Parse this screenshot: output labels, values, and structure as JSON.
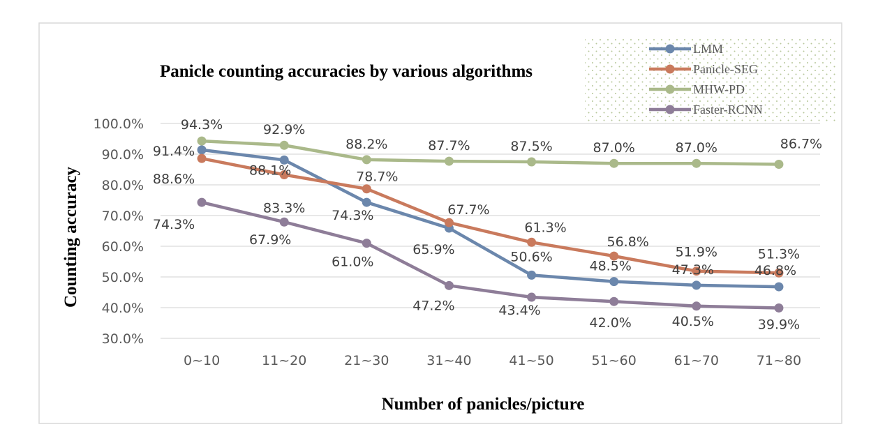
{
  "chart_data": {
    "type": "line",
    "title": "Panicle counting accuracies by various algorithms",
    "xlabel": "Number of panicles/picture",
    "ylabel": "Counting accuracy",
    "categories": [
      "0~10",
      "11~20",
      "21~30",
      "31~40",
      "41~50",
      "51~60",
      "61~70",
      "71~80"
    ],
    "ylim": [
      30,
      100
    ],
    "yticks": [
      "30.0%",
      "40.0%",
      "50.0%",
      "60.0%",
      "70.0%",
      "80.0%",
      "90.0%",
      "100.0%"
    ],
    "grid": true,
    "legend_position": "top-right",
    "series": [
      {
        "name": "LMM",
        "color": "#6b87ac",
        "values": [
          91.4,
          88.1,
          74.3,
          65.9,
          50.6,
          48.5,
          47.3,
          46.8
        ],
        "labels": [
          "91.4%",
          "88.1%",
          "74.3%",
          "65.9%",
          "50.6%",
          "48.5%",
          "47.3%",
          "46.8%"
        ]
      },
      {
        "name": "Panicle-SEG",
        "color": "#c97a5d",
        "values": [
          88.6,
          83.3,
          78.7,
          67.7,
          61.3,
          56.8,
          51.9,
          51.3
        ],
        "labels": [
          "88.6%",
          "83.3%",
          "78.7%",
          "67.7%",
          "61.3%",
          "56.8%",
          "51.9%",
          "51.3%"
        ]
      },
      {
        "name": "MHW-PD",
        "color": "#aab98a",
        "values": [
          94.3,
          92.9,
          88.2,
          87.7,
          87.5,
          87.0,
          87.0,
          86.7
        ],
        "labels": [
          "94.3%",
          "92.9%",
          "88.2%",
          "87.7%",
          "87.5%",
          "87.0%",
          "87.0%",
          "86.7%"
        ]
      },
      {
        "name": "Faster-RCNN",
        "color": "#8e7d98",
        "values": [
          74.3,
          67.9,
          61.0,
          47.2,
          43.4,
          42.0,
          40.5,
          39.9
        ],
        "labels": [
          "74.3%",
          "67.9%",
          "61.0%",
          "47.2%",
          "43.4%",
          "42.0%",
          "40.5%",
          "39.9%"
        ]
      }
    ]
  }
}
